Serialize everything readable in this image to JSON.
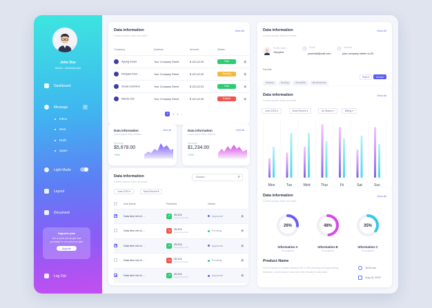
{
  "user": {
    "name": "John Doe",
    "status": "Status : Administrator"
  },
  "nav": {
    "dashboard": "Dashboard",
    "message": "Message",
    "message_count": "4",
    "sub": [
      "Inbox",
      "Sent",
      "Draft",
      "Spam"
    ],
    "light_mode": "Light Mode",
    "layout": "Layout",
    "document": "Document",
    "logout": "Log Out"
  },
  "upgrade": {
    "title": "Upgrade plan",
    "desc": "Get a short and simple text promotion to our premium plan",
    "button": "Upgrade"
  },
  "card1": {
    "title": "Data information",
    "subtitle": "Lorem ipsum dolor sit amet",
    "view_all": "View All",
    "headers": [
      "Company",
      "Address",
      "Amount",
      "Status"
    ],
    "rows": [
      {
        "company": "Agung Surya",
        "address": "Your Company Street",
        "amount": "$ 122,42.03",
        "status": "Paid",
        "color": "#2ecc71"
      },
      {
        "company": "Fitriyatul Khoi ...",
        "address": "Your Company Street",
        "amount": "$ 122,42.03",
        "status": "Pending",
        "color": "#f5b83d"
      },
      {
        "company": "Surya Lesmana",
        "address": "Your Company Street",
        "amount": "$ 122,42.03",
        "status": "Paid",
        "color": "#2ecc71"
      },
      {
        "company": "Marcia Zes",
        "address": "Your Company Street",
        "amount": "$ 122,42.03",
        "status": "Expired",
        "color": "#f0554f"
      }
    ],
    "pages": [
      "1",
      "2",
      "3"
    ]
  },
  "mini1": {
    "title": "Data information",
    "subtitle": "Lorem ipsum dolor sit amet",
    "view_all": "View All",
    "label": "Earnings",
    "value": "$5,678.00",
    "change": "+25%"
  },
  "mini2": {
    "title": "Data information",
    "subtitle": "Lorem ipsum dolor sit amet",
    "view_all": "View All",
    "label": "Earnings",
    "value": "$1,234.00",
    "change": "+20%"
  },
  "card3": {
    "title": "Data information",
    "subtitle": "Lorem ipsum dolor sit amet",
    "search_placeholder": "Search...",
    "filters": [
      "June 2023",
      "Most Recent"
    ],
    "headers": [
      "Ads Name",
      "Reached",
      "Status"
    ],
    "rows": [
      {
        "name": "Data item info A ...",
        "reach": "35,324",
        "reach_sub": "Target Reached",
        "status": "Approved",
        "checked": true,
        "up": true
      },
      {
        "name": "Data item info A ...",
        "reach": "35,324",
        "reach_sub": "Target Reached",
        "status": "Pending",
        "checked": false,
        "up": false
      },
      {
        "name": "Data item info A ...",
        "reach": "35,324",
        "reach_sub": "Target Reached",
        "status": "Approved",
        "checked": true,
        "up": true
      },
      {
        "name": "Data item info A ...",
        "reach": "35,324",
        "reach_sub": "Target Reached",
        "status": "Pending",
        "checked": false,
        "up": false
      },
      {
        "name": "Data item info A ...",
        "reach": "35,324",
        "reach_sub": "Target Reached",
        "status": "Approved",
        "checked": true,
        "up": true
      }
    ]
  },
  "profile": {
    "title": "Data information",
    "subtitle": "Lorem ipsum dolor sit amet",
    "view_all": "View All",
    "name_label": "Profile Name",
    "name": "Jhonpine",
    "email_label": "Email",
    "email": "yourmail@mail.com",
    "address_label": "Address",
    "address": "your company street no.03",
    "fav_label": "Favorite",
    "tags": [
      "#money",
      "#coding",
      "#homelife",
      "#professional"
    ],
    "reject": "Reject",
    "accept": "Accept"
  },
  "chart_card": {
    "title": "Data information",
    "subtitle": "Lorem ipsum dolor sit amet",
    "view_all": "View All",
    "filters": [
      "June 2023",
      "Most Recent",
      "All Status",
      "Billing"
    ]
  },
  "chart_data": {
    "type": "bar",
    "categories": [
      "Mon",
      "Tue",
      "Wed",
      "Thur",
      "Fri",
      "Sat",
      "Sun"
    ],
    "series": [
      {
        "values": [
          35,
          45,
          55,
          95,
          90,
          50,
          90
        ]
      },
      {
        "values": [
          55,
          80,
          80,
          65,
          70,
          75,
          60
        ]
      }
    ],
    "colors": [
      "#7b5cf3",
      "#3fd9e8"
    ],
    "ylim": [
      0,
      100
    ]
  },
  "progress_card": {
    "title": "Data information",
    "subtitle": "Lorem ipsum dolor sit amet",
    "view_all": "View All",
    "items": [
      {
        "pct": "26%",
        "value": 26,
        "label": "Information A",
        "sub": "53 progress",
        "color": "#6a5cf2"
      },
      {
        "pct": "48%",
        "value": 48,
        "label": "Information B",
        "sub": "53 progress",
        "color": "#d44ce6"
      },
      {
        "pct": "35%",
        "value": 35,
        "label": "Information C",
        "sub": "53 progress",
        "color": "#35c8e8"
      }
    ],
    "product_title": "Product Name",
    "product_desc": "Lorem Ipsum is simply dummy text of the printing and typesetting industry. Lorem Ipsum has been the industry's standard",
    "time": "10:00 am",
    "date": "Aug 15, 2023"
  }
}
